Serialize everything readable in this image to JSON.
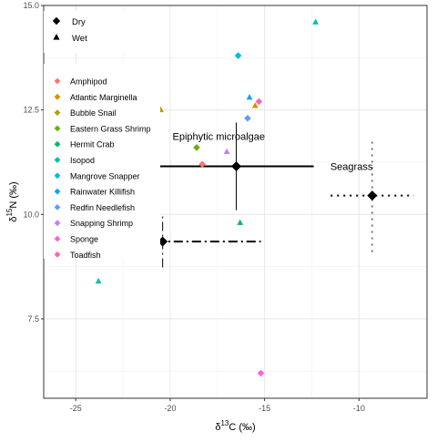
{
  "chart_data": {
    "type": "scatter",
    "title": "",
    "xlabel_parts": [
      "δ",
      "13",
      "C (‰)"
    ],
    "ylabel_parts": [
      "δ",
      "15",
      "N (‰)"
    ],
    "xlim": [
      -26.7,
      -6.4
    ],
    "ylim": [
      5.6,
      15.0
    ],
    "x_ticks": [
      -25,
      -20,
      -15,
      -10
    ],
    "x_tick_labels": [
      "-25",
      "-20",
      "-15",
      "-10"
    ],
    "y_ticks": [
      7.5,
      10.0,
      12.5,
      15.0
    ],
    "y_tick_labels": [
      "7.5",
      "10.0",
      "12.5",
      "15.0"
    ],
    "grid": true,
    "legend_position": "top-left, inside plot",
    "season_legend": [
      {
        "label": "Dry",
        "shape": "diamond"
      },
      {
        "label": "Wet",
        "shape": "triangle"
      }
    ],
    "species": [
      {
        "name": "Amphipod",
        "color": "#F8766D"
      },
      {
        "name": "Atlantic Marginella",
        "color": "#DB8E00"
      },
      {
        "name": "Bubble Snail",
        "color": "#AEA200"
      },
      {
        "name": "Eastern Grass Shrimp",
        "color": "#64B200"
      },
      {
        "name": "Hermit Crab",
        "color": "#00BD5C"
      },
      {
        "name": "Isopod",
        "color": "#00C1A7"
      },
      {
        "name": "Mangrove Snapper",
        "color": "#00BADE"
      },
      {
        "name": "Rainwater Killifish",
        "color": "#00A6FF"
      },
      {
        "name": "Redfin Needlefish",
        "color": "#619CFF"
      },
      {
        "name": "Snapping Shrimp",
        "color": "#C77CFF"
      },
      {
        "name": "Sponge",
        "color": "#F564E3"
      },
      {
        "name": "Toadfish",
        "color": "#FF64B0"
      }
    ],
    "points": [
      {
        "species": "Isopod",
        "season": "Wet",
        "x": -12.3,
        "y": 14.6
      },
      {
        "species": "Mangrove Snapper",
        "season": "Dry",
        "x": -16.4,
        "y": 13.8
      },
      {
        "species": "Rainwater Killifish",
        "season": "Wet",
        "x": -15.8,
        "y": 12.8
      },
      {
        "species": "Toadfish",
        "season": "Dry",
        "x": -15.3,
        "y": 12.7
      },
      {
        "species": "Atlantic Marginella",
        "season": "Wet",
        "x": -15.5,
        "y": 12.6
      },
      {
        "species": "Bubble Snail",
        "season": "Wet",
        "x": -20.5,
        "y": 12.5
      },
      {
        "species": "Redfin Needlefish",
        "season": "Dry",
        "x": -15.9,
        "y": 12.3
      },
      {
        "species": "Eastern Grass Shrimp",
        "season": "Dry",
        "x": -18.6,
        "y": 11.6
      },
      {
        "species": "Snapping Shrimp",
        "season": "Wet",
        "x": -17.0,
        "y": 11.5
      },
      {
        "species": "Amphipod",
        "season": "Dry",
        "x": -18.3,
        "y": 11.2
      },
      {
        "species": "Hermit Crab",
        "season": "Wet",
        "x": -16.3,
        "y": 9.8
      },
      {
        "species": "Isopod",
        "season": "Wet",
        "x": -23.8,
        "y": 8.4
      },
      {
        "species": "Sponge",
        "season": "Dry",
        "x": -15.2,
        "y": 6.2
      }
    ],
    "sources": [
      {
        "name": "Epiphytic microalgae",
        "x": -16.5,
        "y": 11.15,
        "x_err": 4.1,
        "y_err": 1.05,
        "x_style": "solid",
        "y_style": "solid",
        "show_label": true
      },
      {
        "name": "Seagrass",
        "x": -9.3,
        "y": 10.45,
        "x_err": 2.2,
        "y_err": 1.35,
        "x_style": "dotted",
        "y_style": "dotted",
        "show_label": true
      },
      {
        "name": "",
        "x": -20.4,
        "y": 9.35,
        "x_err": 5.2,
        "y_err": 0.62,
        "x_style": "dashdot",
        "y_style": "dashdot",
        "show_label": false
      }
    ]
  }
}
